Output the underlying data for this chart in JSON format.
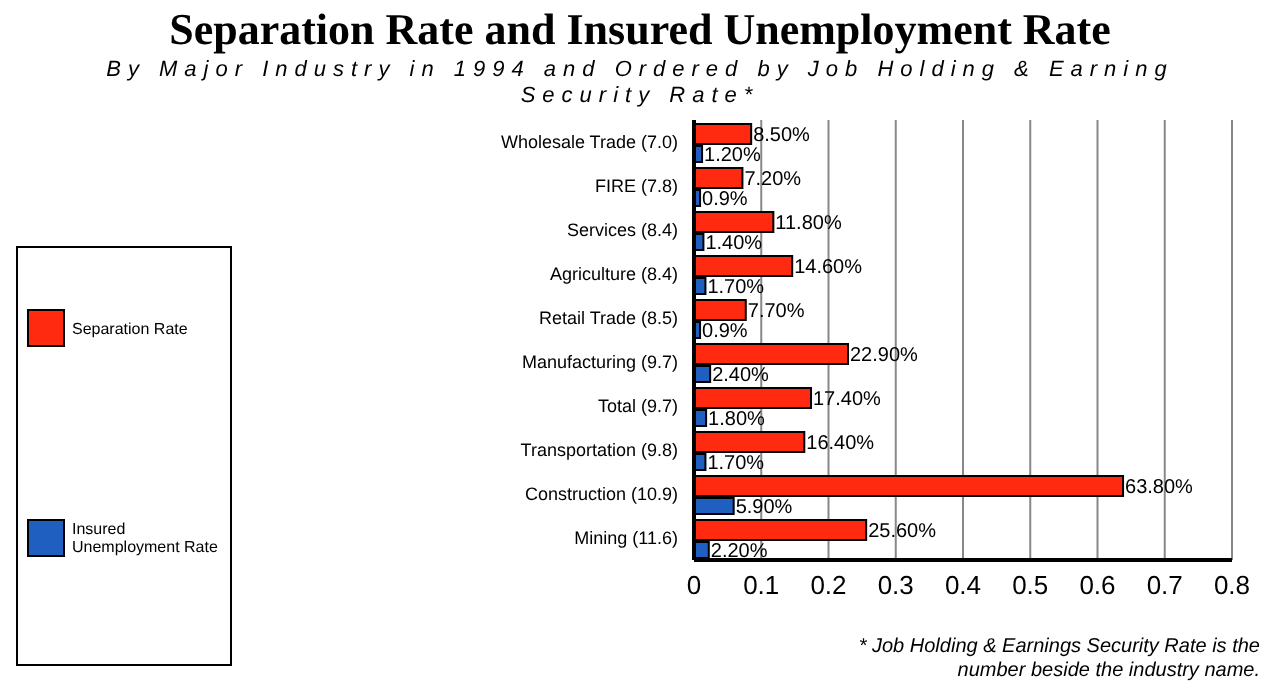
{
  "chart_data": {
    "type": "bar",
    "orientation": "horizontal",
    "title": "Separation Rate and Insured Unemployment Rate",
    "subtitle": "By Major Industry in 1994 and Ordered by Job Holding & Earning Security Rate*",
    "categories": [
      "Wholesale Trade  (7.0)",
      "FIRE  (7.8)",
      "Services  (8.4)",
      "Agriculture  (8.4)",
      "Retail Trade  (8.5)",
      "Manufacturing  (9.7)",
      "Total  (9.7)",
      "Transportation  (9.8)",
      "Construction  (10.9)",
      "Mining  (11.6)"
    ],
    "series": [
      {
        "name": "Separation Rate",
        "color": "#ff2a10",
        "values": [
          0.085,
          0.072,
          0.118,
          0.146,
          0.077,
          0.229,
          0.174,
          0.164,
          0.638,
          0.256
        ],
        "value_labels": [
          "8.50%",
          "7.20%",
          "11.80%",
          "14.60%",
          "7.70%",
          "22.90%",
          "17.40%",
          "16.40%",
          "63.80%",
          "25.60%"
        ]
      },
      {
        "name": "Insured Unemployment Rate",
        "color": "#1e5fc0",
        "values": [
          0.012,
          0.009,
          0.014,
          0.017,
          0.009,
          0.024,
          0.018,
          0.017,
          0.059,
          0.022
        ],
        "value_labels": [
          "1.20%",
          "0.9%",
          "1.40%",
          "1.70%",
          "0.9%",
          "2.40%",
          "1.80%",
          "1.70%",
          "5.90%",
          "2.20%"
        ]
      }
    ],
    "xlim": [
      0,
      0.8
    ],
    "xticks": [
      0,
      0.1,
      0.2,
      0.3,
      0.4,
      0.5,
      0.6,
      0.7,
      0.8
    ],
    "grid": "x",
    "legend": "left",
    "annotations": [
      "* Job Holding & Earnings Security Rate is the number beside the industry name."
    ]
  }
}
